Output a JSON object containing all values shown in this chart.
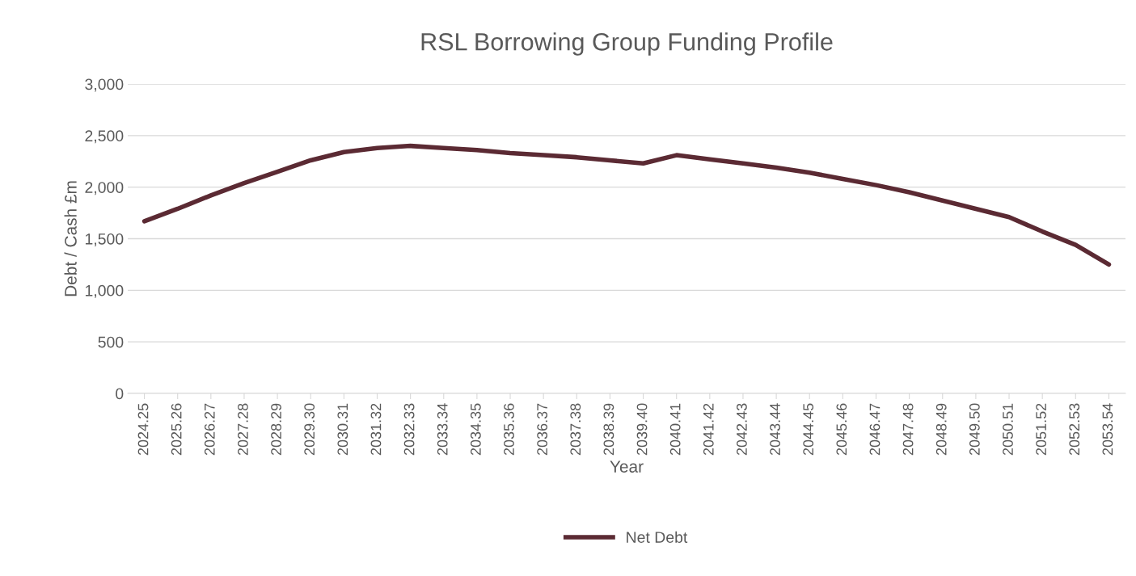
{
  "chart_data": {
    "type": "line",
    "title": "RSL Borrowing Group Funding Profile",
    "xlabel": "Year",
    "ylabel": "Debt / Cash £m",
    "categories": [
      "2024.25",
      "2025.26",
      "2026.27",
      "2027.28",
      "2028.29",
      "2029.30",
      "2030.31",
      "2031.32",
      "2032.33",
      "2033.34",
      "2034.35",
      "2035.36",
      "2036.37",
      "2037.38",
      "2038.39",
      "2039.40",
      "2040.41",
      "2041.42",
      "2042.43",
      "2043.44",
      "2044.45",
      "2045.46",
      "2046.47",
      "2047.48",
      "2048.49",
      "2049.50",
      "2050.51",
      "2051.52",
      "2052.53",
      "2053.54"
    ],
    "series": [
      {
        "name": "Net Debt",
        "color": "#5b2a33",
        "values": [
          1670,
          1790,
          1920,
          2040,
          2150,
          2260,
          2340,
          2380,
          2400,
          2380,
          2360,
          2330,
          2310,
          2290,
          2260,
          2230,
          2310,
          2270,
          2230,
          2190,
          2140,
          2080,
          2020,
          1950,
          1870,
          1790,
          1710,
          1570,
          1440,
          1250
        ]
      }
    ],
    "ylim": [
      0,
      3000
    ],
    "yticks": [
      {
        "value": 0,
        "label": "0"
      },
      {
        "value": 500,
        "label": "500"
      },
      {
        "value": 1000,
        "label": "1,000"
      },
      {
        "value": 1500,
        "label": "1,500"
      },
      {
        "value": 2000,
        "label": "2,000"
      },
      {
        "value": 2500,
        "label": "2,500"
      },
      {
        "value": 3000,
        "label": "3,000"
      }
    ],
    "grid": "y",
    "legend": "bottom",
    "marker": "none",
    "line_style": "solid"
  }
}
